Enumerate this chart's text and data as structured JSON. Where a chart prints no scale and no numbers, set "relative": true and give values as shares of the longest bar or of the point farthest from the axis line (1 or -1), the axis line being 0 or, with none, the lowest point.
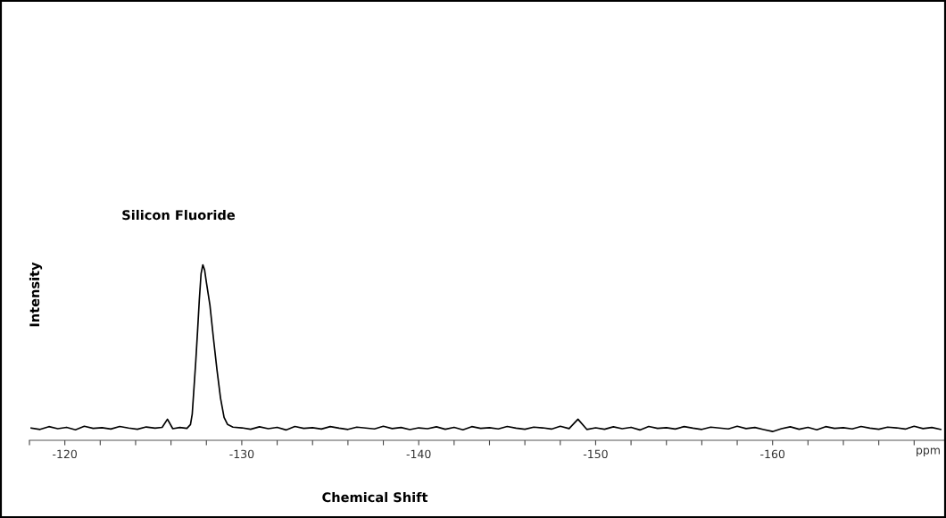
{
  "chart_data": {
    "type": "line",
    "relative": true,
    "xlabel": "Chemical Shift",
    "ylabel": "Intensity",
    "annotations": [
      "Silicon Fluoride",
      "ppm"
    ],
    "xlim": [
      -118.0,
      -169.8
    ],
    "xticks": [
      {
        "value": -118,
        "label": null
      },
      -120,
      {
        "value": -122,
        "label": null
      },
      {
        "value": -124,
        "label": null
      },
      {
        "value": -126,
        "label": null
      },
      {
        "value": -128,
        "label": null
      },
      -130,
      {
        "value": -132,
        "label": null
      },
      {
        "value": -134,
        "label": null
      },
      {
        "value": -136,
        "label": null
      },
      {
        "value": -138,
        "label": null
      },
      -140,
      {
        "value": -142,
        "label": null
      },
      {
        "value": -144,
        "label": null
      },
      {
        "value": -146,
        "label": null
      },
      {
        "value": -148,
        "label": null
      },
      -150,
      {
        "value": -152,
        "label": null
      },
      {
        "value": -154,
        "label": null
      },
      {
        "value": -156,
        "label": null
      },
      {
        "value": -158,
        "label": null
      },
      -160,
      {
        "value": -162,
        "label": null
      },
      {
        "value": -164,
        "label": null
      },
      {
        "value": -166,
        "label": null
      },
      {
        "value": -168,
        "label": null
      }
    ],
    "grid": false,
    "legend": false,
    "marker": "none",
    "line_style": "solid",
    "tick_labels": "x",
    "series": [
      {
        "color": "#000000",
        "x": [
          -118.1,
          -118.6,
          -119.1,
          -119.6,
          -120.1,
          -120.6,
          -121.1,
          -121.6,
          -122.1,
          -122.6,
          -123.1,
          -123.6,
          -124.1,
          -124.6,
          -125.1,
          -125.5,
          -125.8,
          -126.1,
          -126.5,
          -126.9,
          -127.1,
          -127.2,
          -127.3,
          -127.4,
          -127.5,
          -127.6,
          -127.7,
          -127.8,
          -127.9,
          -128.0,
          -128.2,
          -128.4,
          -128.6,
          -128.8,
          -129.0,
          -129.2,
          -129.5,
          -130,
          -130.5,
          -131,
          -131.5,
          -132,
          -132.5,
          -133,
          -133.5,
          -134,
          -134.5,
          -135,
          -135.5,
          -136,
          -136.5,
          -137,
          -137.5,
          -138,
          -138.5,
          -139,
          -139.5,
          -140,
          -140.5,
          -141,
          -141.5,
          -142,
          -142.5,
          -143,
          -143.5,
          -144,
          -144.5,
          -145,
          -145.5,
          -146,
          -146.5,
          -147,
          -147.5,
          -148,
          -148.5,
          -149,
          -149.5,
          -150,
          -150.5,
          -151,
          -151.5,
          -152,
          -152.5,
          -153,
          -153.5,
          -154,
          -154.5,
          -155,
          -155.5,
          -156,
          -156.5,
          -157,
          -157.5,
          -158,
          -158.5,
          -159,
          -159.5,
          -160,
          -160.5,
          -161,
          -161.5,
          -162,
          -162.5,
          -163,
          -163.5,
          -164,
          -164.5,
          -165,
          -165.5,
          -166,
          -166.5,
          -167,
          -167.5,
          -168,
          -168.5,
          -169,
          -169.5
        ],
        "values": [
          0.07,
          0.062,
          0.078,
          0.066,
          0.074,
          0.06,
          0.08,
          0.068,
          0.072,
          0.064,
          0.079,
          0.07,
          0.063,
          0.076,
          0.069,
          0.074,
          0.12,
          0.066,
          0.073,
          0.068,
          0.09,
          0.15,
          0.3,
          0.45,
          0.62,
          0.8,
          0.95,
          1.0,
          0.97,
          0.9,
          0.77,
          0.58,
          0.4,
          0.24,
          0.13,
          0.09,
          0.075,
          0.071,
          0.063,
          0.077,
          0.066,
          0.074,
          0.059,
          0.079,
          0.068,
          0.072,
          0.064,
          0.078,
          0.069,
          0.062,
          0.075,
          0.07,
          0.065,
          0.08,
          0.067,
          0.073,
          0.061,
          0.071,
          0.066,
          0.077,
          0.063,
          0.074,
          0.06,
          0.078,
          0.068,
          0.072,
          0.065,
          0.079,
          0.069,
          0.063,
          0.075,
          0.071,
          0.064,
          0.08,
          0.067,
          0.12,
          0.062,
          0.071,
          0.063,
          0.077,
          0.066,
          0.074,
          0.059,
          0.079,
          0.068,
          0.072,
          0.064,
          0.078,
          0.069,
          0.062,
          0.075,
          0.07,
          0.065,
          0.08,
          0.067,
          0.073,
          0.061,
          0.05,
          0.066,
          0.077,
          0.063,
          0.074,
          0.06,
          0.078,
          0.068,
          0.072,
          0.065,
          0.079,
          0.069,
          0.063,
          0.075,
          0.071,
          0.064,
          0.08,
          0.067,
          0.073,
          0.062
        ]
      }
    ]
  }
}
